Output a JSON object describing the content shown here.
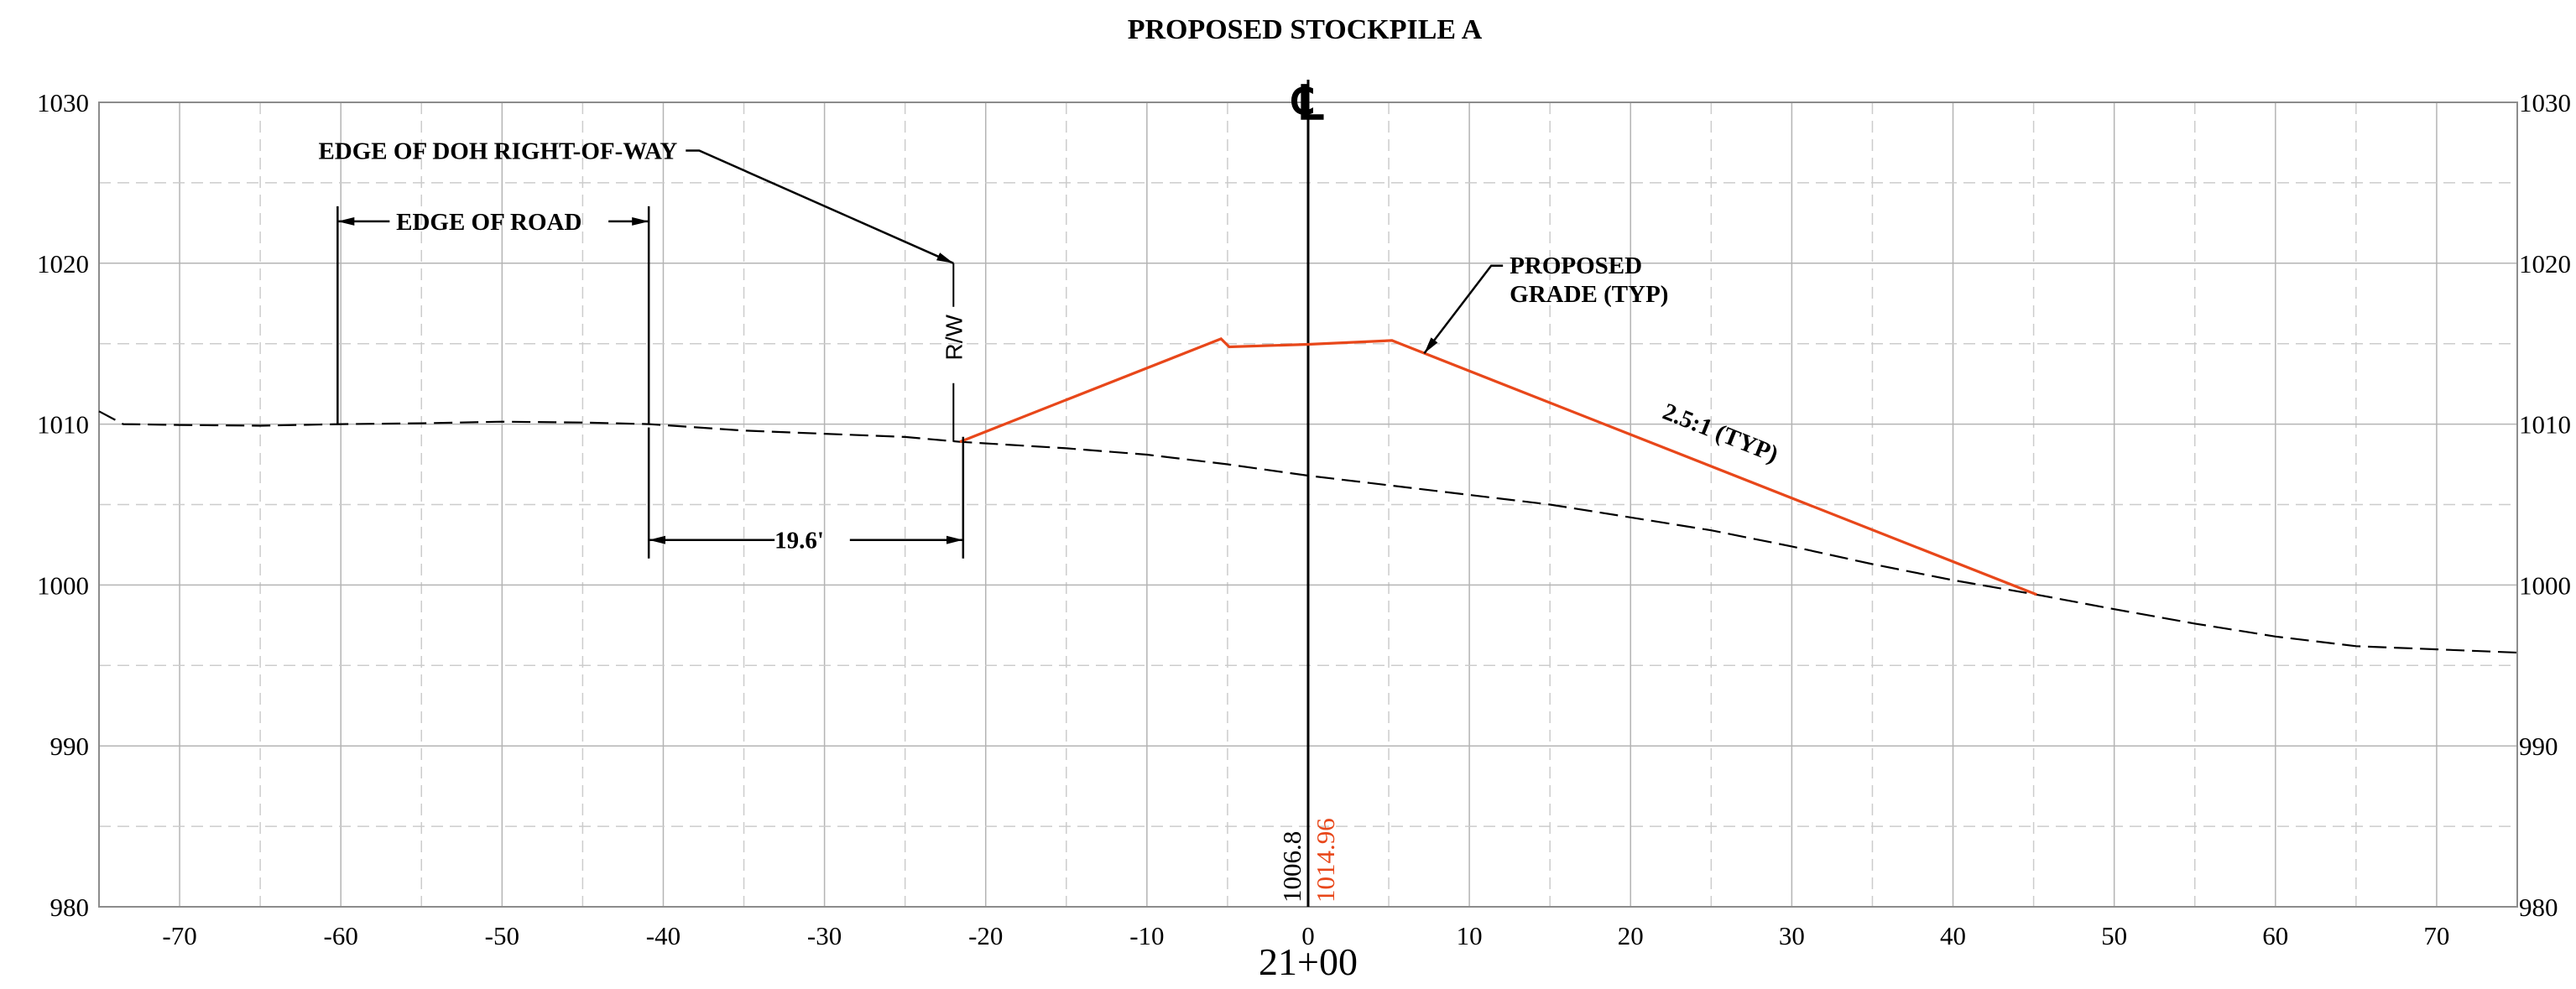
{
  "chart_data": {
    "type": "line",
    "title": "PROPOSED STOCKPILE A",
    "xlim": [
      -75,
      75
    ],
    "ylim": [
      980,
      1030
    ],
    "x_ticks": [
      -70,
      -60,
      -50,
      -40,
      -30,
      -20,
      -10,
      0,
      10,
      20,
      30,
      40,
      50,
      60,
      70
    ],
    "x_tick_labels": [
      "-70",
      "-60",
      "-50",
      "-40",
      "-30",
      "-20",
      "-10",
      "0",
      "10",
      "20",
      "30",
      "40",
      "50",
      "60",
      "70"
    ],
    "y_ticks": [
      980,
      990,
      1000,
      1010,
      1020,
      1030
    ],
    "y_tick_labels": [
      "980",
      "990",
      "1000",
      "1010",
      "1020",
      "1030"
    ],
    "x_minor_step": 5,
    "y_minor_step": 5,
    "grid": true,
    "station_label": "21+00",
    "centerline_label": "℄",
    "colors": {
      "existing": "#000000",
      "proposed": "#e8471a",
      "annotation": "#000000",
      "grid": "#b4b4b4"
    },
    "series": [
      {
        "key": "existing",
        "style": "dashed",
        "points": [
          [
            -75,
            1010.8
          ],
          [
            -73.5,
            1010.0
          ],
          [
            -70,
            1009.95
          ],
          [
            -65,
            1009.9
          ],
          [
            -60,
            1010.0
          ],
          [
            -55,
            1010.05
          ],
          [
            -50,
            1010.15
          ],
          [
            -45,
            1010.1
          ],
          [
            -40.9,
            1010.0
          ],
          [
            -35,
            1009.6
          ],
          [
            -30,
            1009.4
          ],
          [
            -25,
            1009.2
          ],
          [
            -21.6,
            1008.9
          ],
          [
            -15,
            1008.5
          ],
          [
            -10,
            1008.1
          ],
          [
            -5,
            1007.5
          ],
          [
            0,
            1006.8
          ],
          [
            5,
            1006.2
          ],
          [
            10,
            1005.6
          ],
          [
            15,
            1005.0
          ],
          [
            20,
            1004.2
          ],
          [
            25,
            1003.4
          ],
          [
            30,
            1002.4
          ],
          [
            35,
            1001.3
          ],
          [
            40,
            1000.3
          ],
          [
            45.2,
            999.4
          ],
          [
            50,
            998.5
          ],
          [
            55,
            997.6
          ],
          [
            60,
            996.8
          ],
          [
            65,
            996.2
          ],
          [
            70,
            996.0
          ],
          [
            75,
            995.8
          ]
        ]
      },
      {
        "key": "proposed",
        "style": "solid",
        "points": [
          [
            -21.6,
            1008.9
          ],
          [
            -5.4,
            1015.3
          ],
          [
            -4.9,
            1014.8
          ],
          [
            0,
            1014.96
          ],
          [
            5.2,
            1015.2
          ],
          [
            45.2,
            999.4
          ]
        ]
      }
    ],
    "centerline_readouts": [
      {
        "label": "1006.8",
        "series": "existing"
      },
      {
        "label": "1014.96",
        "series": "proposed"
      }
    ],
    "annotations": [
      {
        "key": "edge_of_road",
        "text": "EDGE OF ROAD",
        "type": "dimension",
        "from": -60.2,
        "to": -40.9,
        "at_y": 1022.6
      },
      {
        "key": "offset",
        "text": "19.6'",
        "type": "dimension",
        "from": -40.9,
        "to": -21.4,
        "at_y": 1002.8
      },
      {
        "key": "row",
        "text": "EDGE OF DOH RIGHT-OF-WAY",
        "type": "leader",
        "label_at": [
          -38.5,
          1027.0
        ],
        "target": [
          -22.0,
          1020.0
        ]
      },
      {
        "key": "rw_mark",
        "text": "R/W",
        "type": "vertical_marker",
        "x": -22.0,
        "top": 1020.0,
        "bottom": 1008.9
      },
      {
        "key": "grade",
        "text_lines": [
          "PROPOSED",
          "GRADE (TYP)"
        ],
        "type": "leader",
        "label_at": [
          12.5,
          1020.0
        ],
        "target": [
          7.2,
          1014.4
        ]
      },
      {
        "key": "slope",
        "text": "2.5:1 (TYP)",
        "type": "slope_label",
        "anchor": [
          25.4,
          1009.0
        ],
        "rise_over_run": 0.4
      }
    ]
  }
}
